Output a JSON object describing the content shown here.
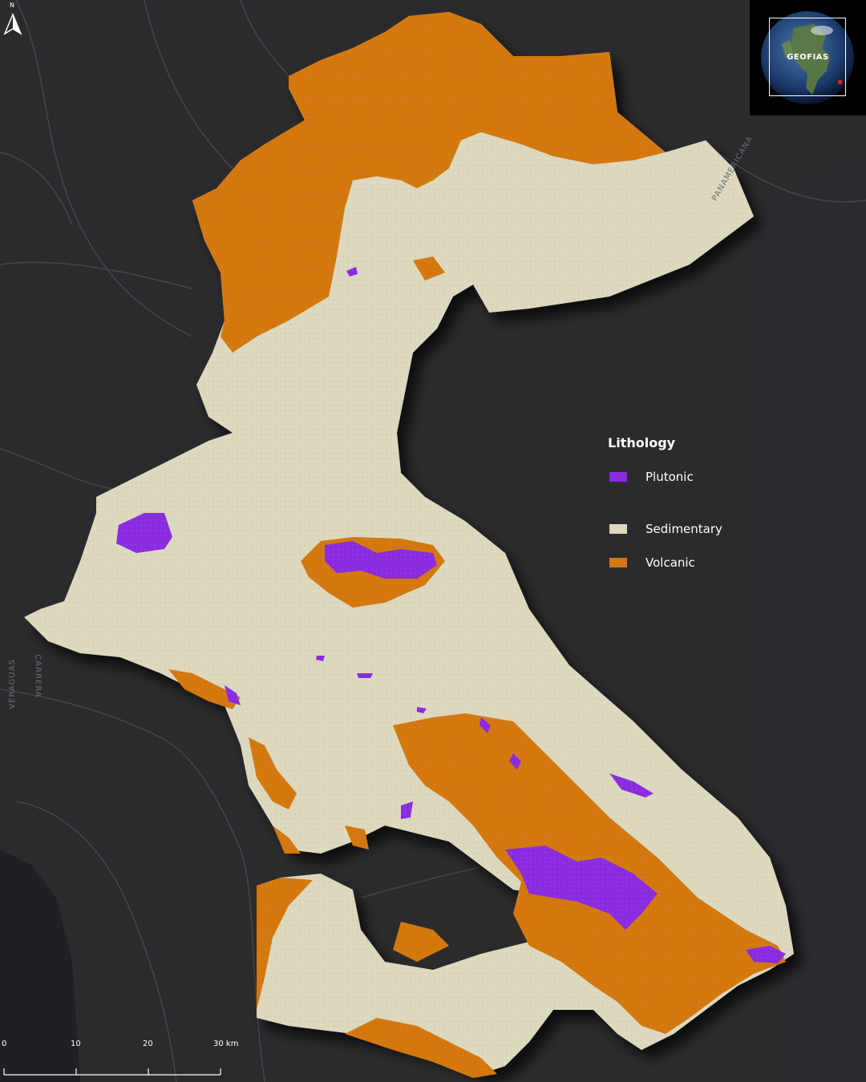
{
  "legend": {
    "title": "Lithology",
    "items": [
      {
        "label": "Plutonic",
        "color": "#8a2be2"
      },
      {
        "label": "Sedimentary",
        "color": "#dcd9bf"
      },
      {
        "label": "Volcanic",
        "color": "#d4780e"
      }
    ]
  },
  "north_arrow": {
    "label": "N"
  },
  "inset": {
    "label": "GEOFIAS"
  },
  "scale_bar": {
    "labels": [
      "0",
      "10",
      "20",
      "30 km"
    ]
  },
  "road_labels": [
    "VERAGUAS",
    "CARRERA",
    "PANAMERICANA"
  ],
  "colors": {
    "background": "#2b2b2e",
    "sea": "#25252a"
  }
}
